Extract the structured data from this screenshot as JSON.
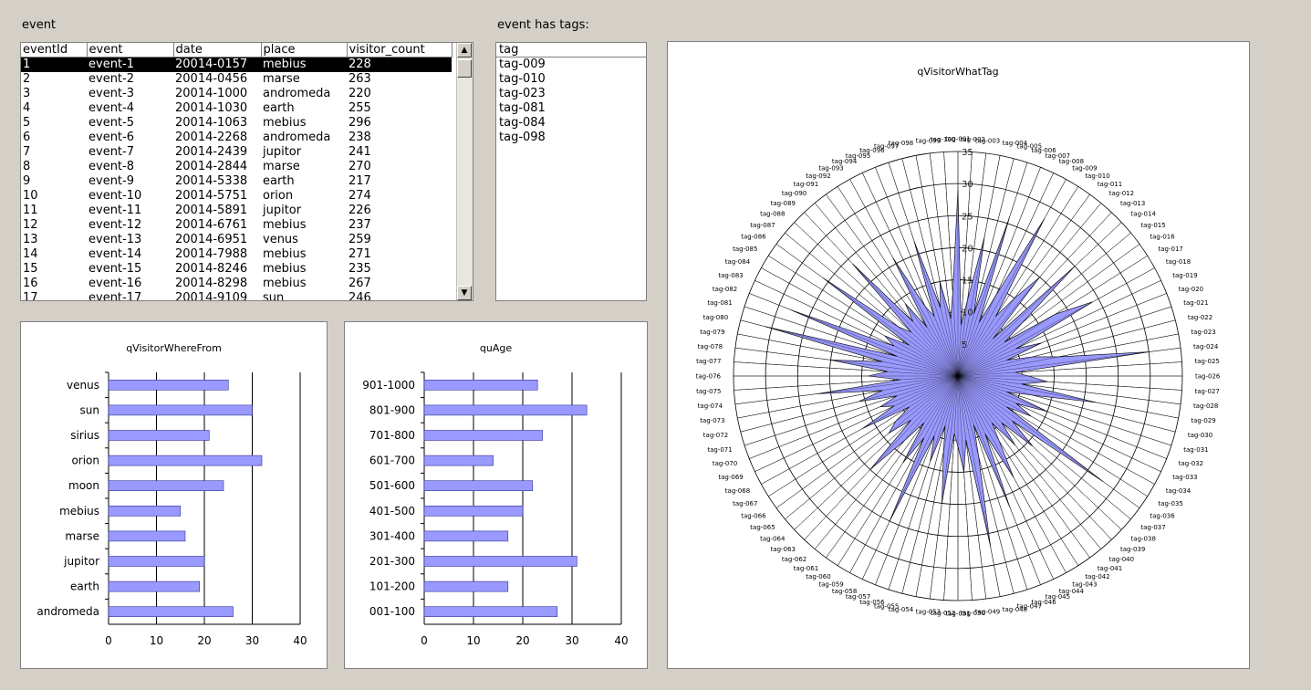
{
  "labels": {
    "event": "event",
    "event_has_tags": "event has tags:"
  },
  "event_table": {
    "columns": [
      "eventId",
      "event",
      "date",
      "place",
      "visitor_count"
    ],
    "rows": [
      [
        "1",
        "event-1",
        "20014-0157",
        "mebius",
        "228"
      ],
      [
        "2",
        "event-2",
        "20014-0456",
        "marse",
        "263"
      ],
      [
        "3",
        "event-3",
        "20014-1000",
        "andromeda",
        "220"
      ],
      [
        "4",
        "event-4",
        "20014-1030",
        "earth",
        "255"
      ],
      [
        "5",
        "event-5",
        "20014-1063",
        "mebius",
        "296"
      ],
      [
        "6",
        "event-6",
        "20014-2268",
        "andromeda",
        "238"
      ],
      [
        "7",
        "event-7",
        "20014-2439",
        "jupitor",
        "241"
      ],
      [
        "8",
        "event-8",
        "20014-2844",
        "marse",
        "270"
      ],
      [
        "9",
        "event-9",
        "20014-5338",
        "earth",
        "217"
      ],
      [
        "10",
        "event-10",
        "20014-5751",
        "orion",
        "274"
      ],
      [
        "11",
        "event-11",
        "20014-5891",
        "jupitor",
        "226"
      ],
      [
        "12",
        "event-12",
        "20014-6761",
        "mebius",
        "237"
      ],
      [
        "13",
        "event-13",
        "20014-6951",
        "venus",
        "259"
      ],
      [
        "14",
        "event-14",
        "20014-7988",
        "mebius",
        "271"
      ],
      [
        "15",
        "event-15",
        "20014-8246",
        "mebius",
        "235"
      ],
      [
        "16",
        "event-16",
        "20014-8298",
        "mebius",
        "267"
      ],
      [
        "17",
        "event-17",
        "20014-9109",
        "sun",
        "246"
      ]
    ],
    "selected_row": 0
  },
  "tag_list": {
    "header": "tag",
    "items": [
      "tag-009",
      "tag-010",
      "tag-023",
      "tag-081",
      "tag-084",
      "tag-098"
    ]
  },
  "colors": {
    "bar": "#9999ff",
    "bar_stroke": "#333399",
    "radar_fill": "#9999ff",
    "selection": "#000000"
  },
  "chart_data": [
    {
      "type": "bar",
      "orientation": "horizontal",
      "title": "qVisitorWhereFrom",
      "categories": [
        "venus",
        "sun",
        "sirius",
        "orion",
        "moon",
        "mebius",
        "marse",
        "jupitor",
        "earth",
        "andromeda"
      ],
      "values": [
        25,
        30,
        21,
        32,
        24,
        15,
        16,
        20,
        19,
        26
      ],
      "xlim": [
        0,
        40
      ],
      "xticks": [
        0,
        10,
        20,
        30,
        40
      ],
      "grid": true
    },
    {
      "type": "bar",
      "orientation": "horizontal",
      "title": "quAge",
      "categories": [
        "901-1000",
        "801-900",
        "701-800",
        "601-700",
        "501-600",
        "401-500",
        "301-400",
        "201-300",
        "101-200",
        "001-100"
      ],
      "values": [
        23,
        33,
        24,
        14,
        22,
        20,
        17,
        31,
        17,
        27
      ],
      "xlim": [
        0,
        40
      ],
      "xticks": [
        0,
        10,
        20,
        30,
        40
      ],
      "grid": true
    },
    {
      "type": "radar",
      "title": "qVisitorWhatTag",
      "categories": [
        "tag-001",
        "tag-002",
        "tag-003",
        "tag-004",
        "tag-005",
        "tag-006",
        "tag-007",
        "tag-008",
        "tag-009",
        "tag-010",
        "tag-011",
        "tag-012",
        "tag-013",
        "tag-014",
        "tag-015",
        "tag-016",
        "tag-017",
        "tag-018",
        "tag-019",
        "tag-020",
        "tag-021",
        "tag-022",
        "tag-023",
        "tag-024",
        "tag-025",
        "tag-026",
        "tag-027",
        "tag-028",
        "tag-029",
        "tag-030",
        "tag-031",
        "tag-032",
        "tag-033",
        "tag-034",
        "tag-035",
        "tag-036",
        "tag-037",
        "tag-038",
        "tag-039",
        "tag-040",
        "tag-041",
        "tag-042",
        "tag-043",
        "tag-044",
        "tag-045",
        "tag-046",
        "tag-047",
        "tag-048",
        "tag-049",
        "tag-050",
        "tag-051",
        "tag-052",
        "tag-053",
        "tag-054",
        "tag-055",
        "tag-056",
        "tag-057",
        "tag-058",
        "tag-059",
        "tag-060",
        "tag-061",
        "tag-062",
        "tag-063",
        "tag-064",
        "tag-065",
        "tag-066",
        "tag-067",
        "tag-068",
        "tag-069",
        "tag-070",
        "tag-071",
        "tag-072",
        "tag-073",
        "tag-074",
        "tag-075",
        "tag-076",
        "tag-077",
        "tag-078",
        "tag-079",
        "tag-080",
        "tag-081",
        "tag-082",
        "tag-083",
        "tag-084",
        "tag-085",
        "tag-086",
        "tag-087",
        "tag-088",
        "tag-089",
        "tag-090",
        "tag-091",
        "tag-092",
        "tag-093",
        "tag-094",
        "tag-095",
        "tag-096",
        "tag-097",
        "tag-098",
        "tag-099",
        "tag-100"
      ],
      "values": [
        29,
        8,
        12,
        22,
        10,
        26,
        9,
        14,
        28,
        11,
        15,
        20,
        8,
        25,
        13,
        9,
        18,
        24,
        10,
        14,
        8,
        12,
        16,
        30,
        9,
        11,
        14,
        10,
        22,
        12,
        8,
        15,
        10,
        13,
        9,
        28,
        11,
        16,
        10,
        14,
        9,
        12,
        18,
        10,
        22,
        8,
        13,
        27,
        10,
        15,
        11,
        9,
        20,
        12,
        8,
        14,
        10,
        25,
        11,
        16,
        9,
        13,
        20,
        10,
        14,
        12,
        9,
        17,
        11,
        13,
        10,
        16,
        12,
        22,
        9,
        14,
        11,
        20,
        12,
        31,
        10,
        28,
        11,
        13,
        9,
        26,
        12,
        10,
        24,
        11,
        14,
        9,
        21,
        12,
        10,
        22,
        11,
        15,
        9,
        13
      ],
      "rlim": [
        0,
        35
      ],
      "rticks": [
        5,
        10,
        15,
        20,
        25,
        30,
        35
      ],
      "grid": true
    }
  ]
}
